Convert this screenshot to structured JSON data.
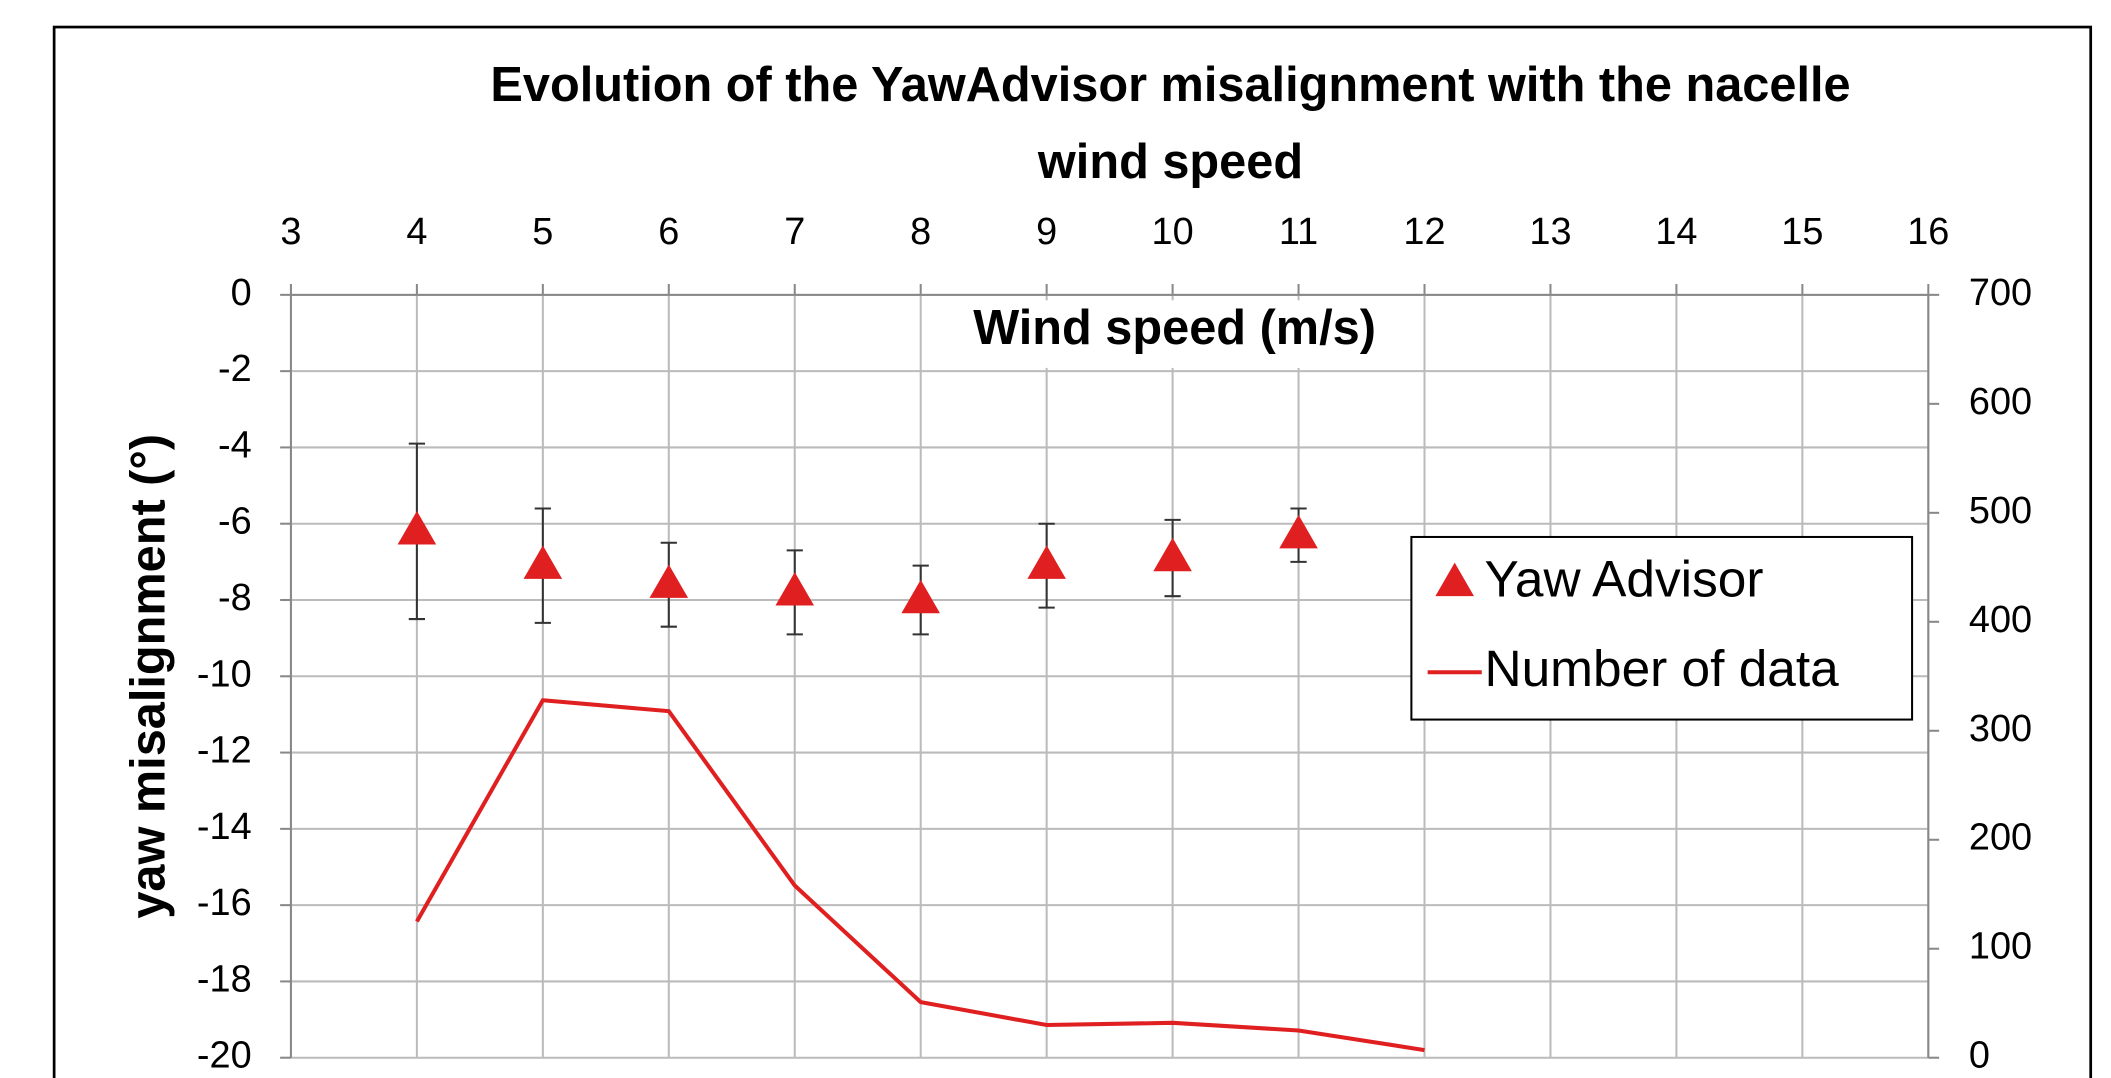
{
  "chart_data": {
    "type": "scatter",
    "title": "Evolution of the YawAdvisor misalignment with the nacelle wind speed",
    "xlabel": "Wind speed (m/s)",
    "ylabel": "yaw misalignment (°)",
    "xlim": [
      3,
      16
    ],
    "xticks": [
      3,
      4,
      5,
      6,
      7,
      8,
      9,
      10,
      11,
      12,
      13,
      14,
      15,
      16
    ],
    "ylim": [
      -20,
      0
    ],
    "yticks": [
      -20,
      -18,
      -16,
      -14,
      -12,
      -10,
      -8,
      -6,
      -4,
      -2,
      0
    ],
    "y2lim": [
      0,
      700
    ],
    "y2ticks": [
      0,
      100,
      200,
      300,
      400,
      500,
      600,
      700
    ],
    "grid": true,
    "legend": "right",
    "series": [
      {
        "name": "Yaw Advisor",
        "color": "#e02020",
        "marker": "triangle",
        "x": [
          4,
          5,
          6,
          7,
          8,
          9,
          10,
          11
        ],
        "values": [
          -6.2,
          -7.1,
          -7.6,
          -7.8,
          -8.0,
          -7.1,
          -6.9,
          -6.3
        ],
        "errors": [
          2.3,
          1.5,
          1.1,
          1.1,
          0.9,
          1.1,
          1.0,
          0.7
        ]
      },
      {
        "name": "Number of data",
        "color": "#e02020",
        "axis": "y2",
        "line": true,
        "x": [
          4,
          5,
          6,
          7,
          8,
          9,
          10,
          11,
          12
        ],
        "values": [
          125,
          328,
          318,
          158,
          51,
          30,
          32,
          25,
          7
        ]
      }
    ]
  }
}
